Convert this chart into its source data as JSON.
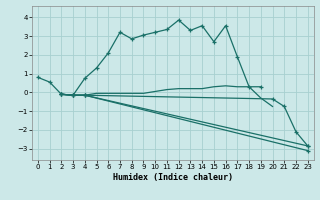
{
  "background_color": "#cce8e8",
  "grid_color": "#a8d0d0",
  "line_color": "#1a7068",
  "xlabel": "Humidex (Indice chaleur)",
  "xlim": [
    -0.5,
    23.5
  ],
  "ylim": [
    -3.6,
    4.6
  ],
  "yticks": [
    -3,
    -2,
    -1,
    0,
    1,
    2,
    3,
    4
  ],
  "xticks": [
    0,
    1,
    2,
    3,
    4,
    5,
    6,
    7,
    8,
    9,
    10,
    11,
    12,
    13,
    14,
    15,
    16,
    17,
    18,
    19,
    20,
    21,
    22,
    23
  ],
  "line1_x": [
    0,
    1,
    2,
    3,
    4,
    5,
    6,
    7,
    8,
    9,
    10,
    11,
    12,
    13,
    14,
    15,
    16,
    17,
    18,
    19
  ],
  "line1_y": [
    0.8,
    0.55,
    -0.1,
    -0.15,
    0.75,
    1.3,
    2.1,
    3.2,
    2.85,
    3.05,
    3.2,
    3.35,
    3.85,
    3.3,
    3.55,
    2.7,
    3.55,
    1.9,
    0.3,
    0.3
  ],
  "line2_x": [
    2,
    3,
    4,
    5,
    6,
    7,
    8,
    9,
    10,
    11,
    12,
    13,
    14,
    15,
    16,
    17,
    18,
    19,
    20
  ],
  "line2_y": [
    -0.1,
    -0.15,
    -0.15,
    -0.05,
    -0.05,
    -0.05,
    -0.05,
    -0.05,
    0.05,
    0.15,
    0.2,
    0.2,
    0.2,
    0.3,
    0.35,
    0.3,
    0.3,
    -0.3,
    -0.75
  ],
  "line3_x": [
    2,
    3,
    4,
    23
  ],
  "line3_y": [
    -0.1,
    -0.15,
    -0.15,
    -2.85
  ],
  "line4_x": [
    2,
    3,
    4,
    23
  ],
  "line4_y": [
    -0.1,
    -0.15,
    -0.15,
    -3.1
  ],
  "line5_x": [
    2,
    3,
    4,
    20,
    21,
    22,
    23
  ],
  "line5_y": [
    -0.1,
    -0.15,
    -0.15,
    -0.35,
    -0.75,
    -2.1,
    -2.85
  ]
}
